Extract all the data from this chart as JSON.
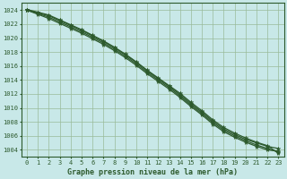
{
  "title": "Graphe pression niveau de la mer (hPa)",
  "background_color": "#c8e8e8",
  "plot_bg_color": "#c8e8e8",
  "grid_color": "#99bb99",
  "line_color": "#2d5a2d",
  "xlim": [
    -0.5,
    23.5
  ],
  "ylim": [
    1003.0,
    1025.0
  ],
  "xticks": [
    0,
    1,
    2,
    3,
    4,
    5,
    6,
    7,
    8,
    9,
    10,
    11,
    12,
    13,
    14,
    15,
    16,
    17,
    18,
    19,
    20,
    21,
    22,
    23
  ],
  "yticks": [
    1004,
    1006,
    1008,
    1010,
    1012,
    1014,
    1016,
    1018,
    1020,
    1022,
    1024
  ],
  "series": [
    [
      1024.0,
      1023.6,
      1023.2,
      1022.5,
      1021.8,
      1021.1,
      1020.3,
      1019.5,
      1018.6,
      1017.6,
      1016.5,
      1015.3,
      1014.2,
      1013.1,
      1011.9,
      1010.6,
      1009.4,
      1008.1,
      1007.0,
      1006.2,
      1005.5,
      1005.0,
      1004.5,
      1004.2
    ],
    [
      1024.1,
      1023.7,
      1023.3,
      1022.6,
      1021.9,
      1021.2,
      1020.4,
      1019.6,
      1018.7,
      1017.7,
      1016.6,
      1015.4,
      1014.3,
      1013.2,
      1012.1,
      1010.8,
      1009.6,
      1008.3,
      1007.2,
      1006.4,
      1005.7,
      1005.1,
      1004.6,
      1003.5
    ],
    [
      1024.0,
      1023.5,
      1023.0,
      1022.3,
      1021.6,
      1020.9,
      1020.1,
      1019.3,
      1018.4,
      1017.4,
      1016.3,
      1015.1,
      1014.0,
      1012.9,
      1011.7,
      1010.4,
      1009.2,
      1007.9,
      1006.8,
      1006.0,
      1005.3,
      1004.7,
      1004.2,
      1003.7
    ],
    [
      1024.0,
      1023.4,
      1022.8,
      1022.1,
      1021.4,
      1020.7,
      1019.9,
      1019.1,
      1018.2,
      1017.2,
      1016.1,
      1014.9,
      1013.8,
      1012.7,
      1011.5,
      1010.2,
      1009.0,
      1007.7,
      1006.6,
      1005.8,
      1005.1,
      1004.5,
      1004.0,
      1003.8
    ]
  ],
  "title_fontsize": 6.0,
  "tick_fontsize": 5.0,
  "linewidth": 0.9,
  "markersize": 3.5
}
